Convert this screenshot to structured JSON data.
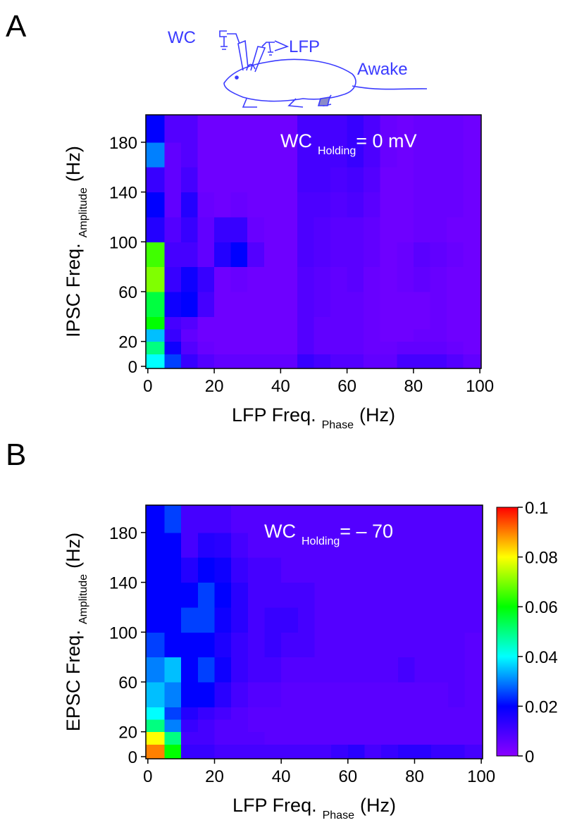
{
  "panel_labels": [
    "A",
    "B"
  ],
  "illustration": {
    "labels": [
      "WC",
      "LFP",
      "Awake"
    ]
  },
  "chart_data": [
    {
      "type": "heatmap",
      "annotation": {
        "main": "WC",
        "sub": "Holding",
        "rest": "= 0 mV"
      },
      "xlabel": {
        "main": "LFP Freq.",
        "sub": "Phase",
        "unit": "(Hz)"
      },
      "ylabel": {
        "main": "IPSC Freq.",
        "sub": "Amplitude",
        "unit": "(Hz)"
      },
      "xlim": [
        -0.6,
        100.4
      ],
      "ylim": [
        -1.7,
        202
      ],
      "xticks": [
        0,
        20,
        40,
        60,
        80,
        100
      ],
      "yticks": [
        0,
        20,
        60,
        100,
        140,
        180
      ],
      "xbins": [
        -0.6,
        5,
        10,
        15,
        20,
        25,
        30,
        35,
        40,
        45,
        50,
        55,
        60,
        65,
        70,
        75,
        80,
        85,
        90,
        95,
        100.4
      ],
      "ybins": [
        -1.7,
        10,
        20,
        30,
        40,
        60,
        80,
        100,
        120,
        140,
        160,
        180,
        202
      ],
      "clim": [
        0,
        0.1
      ],
      "colors": [
        "#8a00ff",
        "#0000ff",
        "#00ffff",
        "#00ff00",
        "#ffff00",
        "#ff0000"
      ],
      "z": [
        [
          0.04,
          0.025,
          0.012,
          0.008,
          0.006,
          0.006,
          0.006,
          0.006,
          0.006,
          0.012,
          0.01,
          0.008,
          0.008,
          0.006,
          0.006,
          0.01,
          0.01,
          0.01,
          0.008,
          0.006
        ],
        [
          0.05,
          0.018,
          0.008,
          0.005,
          0.004,
          0.004,
          0.004,
          0.004,
          0.004,
          0.008,
          0.006,
          0.006,
          0.006,
          0.005,
          0.005,
          0.006,
          0.006,
          0.006,
          0.005,
          0.004
        ],
        [
          0.035,
          0.012,
          0.006,
          0.004,
          0.004,
          0.004,
          0.004,
          0.004,
          0.004,
          0.008,
          0.006,
          0.006,
          0.006,
          0.005,
          0.004,
          0.004,
          0.005,
          0.005,
          0.004,
          0.004
        ],
        [
          0.06,
          0.01,
          0.008,
          0.004,
          0.004,
          0.004,
          0.004,
          0.004,
          0.004,
          0.008,
          0.006,
          0.006,
          0.006,
          0.005,
          0.004,
          0.004,
          0.004,
          0.005,
          0.004,
          0.004
        ],
        [
          0.055,
          0.018,
          0.02,
          0.01,
          0.004,
          0.004,
          0.004,
          0.004,
          0.004,
          0.008,
          0.007,
          0.006,
          0.006,
          0.005,
          0.004,
          0.004,
          0.004,
          0.005,
          0.004,
          0.004
        ],
        [
          0.07,
          0.012,
          0.018,
          0.012,
          0.004,
          0.005,
          0.004,
          0.004,
          0.004,
          0.008,
          0.007,
          0.006,
          0.007,
          0.005,
          0.004,
          0.005,
          0.006,
          0.005,
          0.004,
          0.004
        ],
        [
          0.065,
          0.01,
          0.01,
          0.006,
          0.015,
          0.02,
          0.008,
          0.004,
          0.004,
          0.009,
          0.008,
          0.007,
          0.007,
          0.006,
          0.004,
          0.005,
          0.007,
          0.006,
          0.005,
          0.004
        ],
        [
          0.015,
          0.008,
          0.012,
          0.006,
          0.012,
          0.012,
          0.005,
          0.004,
          0.004,
          0.009,
          0.008,
          0.007,
          0.007,
          0.006,
          0.004,
          0.004,
          0.005,
          0.005,
          0.004,
          0.004
        ],
        [
          0.02,
          0.006,
          0.015,
          0.005,
          0.004,
          0.005,
          0.004,
          0.004,
          0.004,
          0.009,
          0.009,
          0.008,
          0.009,
          0.007,
          0.004,
          0.004,
          0.005,
          0.005,
          0.005,
          0.004
        ],
        [
          0.012,
          0.006,
          0.01,
          0.004,
          0.004,
          0.004,
          0.004,
          0.004,
          0.004,
          0.01,
          0.01,
          0.009,
          0.01,
          0.008,
          0.004,
          0.004,
          0.005,
          0.005,
          0.005,
          0.004
        ],
        [
          0.03,
          0.006,
          0.008,
          0.004,
          0.004,
          0.004,
          0.004,
          0.004,
          0.004,
          0.01,
          0.01,
          0.01,
          0.012,
          0.009,
          0.005,
          0.004,
          0.005,
          0.005,
          0.005,
          0.004
        ],
        [
          0.02,
          0.008,
          0.008,
          0.004,
          0.004,
          0.004,
          0.004,
          0.004,
          0.004,
          0.01,
          0.01,
          0.01,
          0.012,
          0.009,
          0.005,
          0.004,
          0.005,
          0.005,
          0.005,
          0.004
        ]
      ]
    },
    {
      "type": "heatmap",
      "annotation": {
        "main": "WC",
        "sub": "Holding",
        "rest": "= – 70"
      },
      "xlabel": {
        "main": "LFP Freq.",
        "sub": "Phase",
        "unit": "(Hz)"
      },
      "ylabel": {
        "main": "EPSC Freq.",
        "sub": "Amplitude",
        "unit": "(Hz)"
      },
      "xlim": [
        -0.6,
        100.4
      ],
      "ylim": [
        -1.7,
        202
      ],
      "xticks": [
        0,
        20,
        40,
        60,
        80,
        100
      ],
      "yticks": [
        0,
        20,
        60,
        100,
        140,
        180
      ],
      "xbins": [
        -0.6,
        5,
        10,
        15,
        20,
        25,
        30,
        35,
        40,
        45,
        50,
        55,
        60,
        65,
        70,
        75,
        80,
        85,
        90,
        95,
        100.4
      ],
      "ybins": [
        -1.7,
        10,
        20,
        30,
        40,
        60,
        80,
        100,
        120,
        140,
        160,
        180,
        202
      ],
      "clim": [
        0,
        0.1
      ],
      "colors": [
        "#8a00ff",
        "#0000ff",
        "#00ffff",
        "#00ff00",
        "#ffff00",
        "#ff0000"
      ],
      "z": [
        [
          0.09,
          0.06,
          0.012,
          0.012,
          0.01,
          0.01,
          0.01,
          0.01,
          0.01,
          0.01,
          0.01,
          0.012,
          0.014,
          0.01,
          0.012,
          0.014,
          0.014,
          0.012,
          0.012,
          0.01
        ],
        [
          0.08,
          0.05,
          0.01,
          0.01,
          0.008,
          0.008,
          0.008,
          0.007,
          0.007,
          0.007,
          0.007,
          0.007,
          0.007,
          0.007,
          0.007,
          0.007,
          0.007,
          0.007,
          0.007,
          0.007
        ],
        [
          0.05,
          0.03,
          0.012,
          0.01,
          0.008,
          0.008,
          0.007,
          0.007,
          0.007,
          0.007,
          0.007,
          0.007,
          0.007,
          0.007,
          0.007,
          0.007,
          0.007,
          0.007,
          0.007,
          0.007
        ],
        [
          0.04,
          0.025,
          0.015,
          0.012,
          0.01,
          0.008,
          0.007,
          0.007,
          0.007,
          0.007,
          0.007,
          0.007,
          0.007,
          0.007,
          0.007,
          0.007,
          0.007,
          0.007,
          0.007,
          0.007
        ],
        [
          0.035,
          0.03,
          0.02,
          0.02,
          0.014,
          0.01,
          0.008,
          0.008,
          0.007,
          0.007,
          0.007,
          0.007,
          0.007,
          0.007,
          0.007,
          0.007,
          0.007,
          0.007,
          0.008,
          0.007
        ],
        [
          0.03,
          0.035,
          0.02,
          0.025,
          0.018,
          0.012,
          0.01,
          0.01,
          0.008,
          0.008,
          0.008,
          0.008,
          0.008,
          0.008,
          0.008,
          0.01,
          0.008,
          0.008,
          0.008,
          0.007
        ],
        [
          0.025,
          0.02,
          0.02,
          0.02,
          0.016,
          0.012,
          0.01,
          0.012,
          0.01,
          0.01,
          0.008,
          0.008,
          0.008,
          0.008,
          0.008,
          0.008,
          0.008,
          0.008,
          0.008,
          0.007
        ],
        [
          0.02,
          0.02,
          0.025,
          0.025,
          0.018,
          0.014,
          0.01,
          0.012,
          0.012,
          0.01,
          0.008,
          0.008,
          0.008,
          0.008,
          0.008,
          0.008,
          0.008,
          0.008,
          0.008,
          0.008
        ],
        [
          0.02,
          0.02,
          0.02,
          0.025,
          0.02,
          0.014,
          0.01,
          0.01,
          0.01,
          0.01,
          0.008,
          0.008,
          0.008,
          0.008,
          0.008,
          0.008,
          0.008,
          0.008,
          0.008,
          0.008
        ],
        [
          0.02,
          0.02,
          0.015,
          0.02,
          0.018,
          0.012,
          0.01,
          0.01,
          0.008,
          0.008,
          0.008,
          0.008,
          0.008,
          0.008,
          0.008,
          0.008,
          0.008,
          0.008,
          0.008,
          0.008
        ],
        [
          0.02,
          0.02,
          0.01,
          0.015,
          0.014,
          0.01,
          0.008,
          0.008,
          0.008,
          0.008,
          0.008,
          0.008,
          0.008,
          0.008,
          0.008,
          0.008,
          0.008,
          0.008,
          0.008,
          0.008
        ],
        [
          0.02,
          0.025,
          0.01,
          0.01,
          0.01,
          0.008,
          0.008,
          0.008,
          0.008,
          0.008,
          0.008,
          0.008,
          0.008,
          0.008,
          0.008,
          0.008,
          0.008,
          0.008,
          0.008,
          0.008
        ]
      ],
      "colorbar": {
        "ticks": [
          0,
          0.02,
          0.04,
          0.06,
          0.08,
          0.1
        ]
      }
    }
  ]
}
